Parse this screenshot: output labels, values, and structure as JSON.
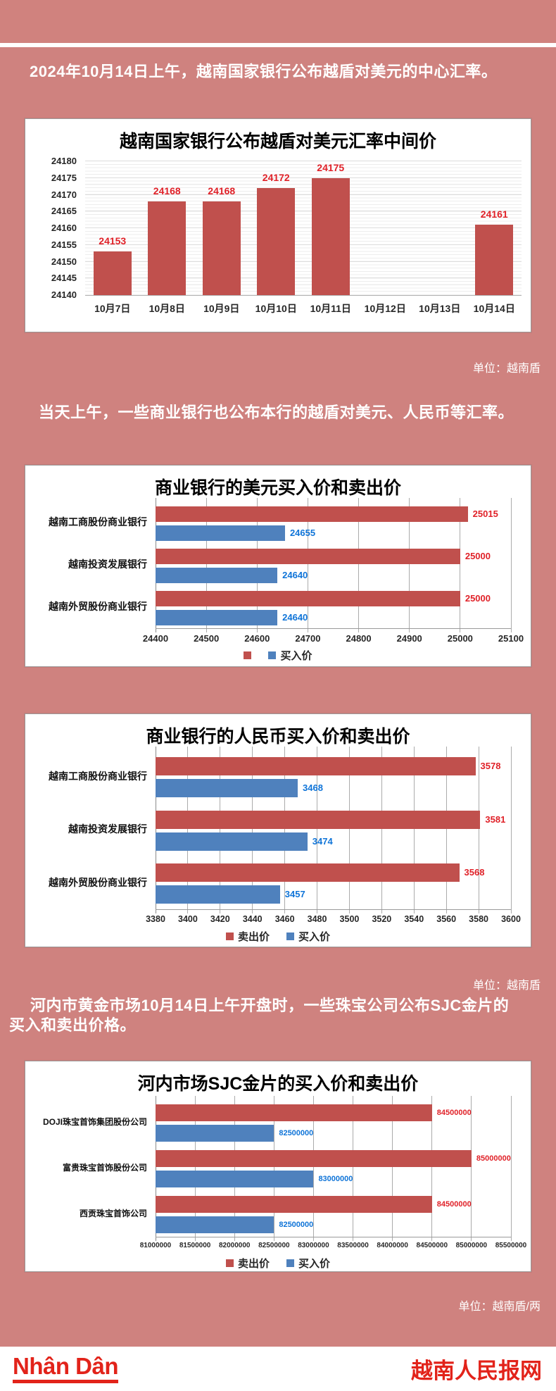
{
  "colors": {
    "bar_red": "#c0504d",
    "bar_blue": "#4f81bd",
    "label_red": "#e02128",
    "label_blue": "#0f74d8",
    "background_pink": "#cf827f",
    "brand_red": "#e2231a"
  },
  "intro1": "2024年10月14日上午，越南国家银行公布越盾对美元的中心汇率。",
  "unit1": "单位：越南盾",
  "intro2": "当天上午，一些商业银行也公布本行的越盾对美元、人民币等汇率。",
  "unit2": "单位：越南盾",
  "intro3": {
    "line1": "河内市黄金市场10月14日上午开盘时，一些珠宝公司公布SJC金片的",
    "line2": "买入和卖出价格。"
  },
  "unit3": "单位：越南盾/两",
  "footer": {
    "logo": "Nhân Dân",
    "site": "越南人民报网"
  },
  "chart_data": [
    {
      "type": "bar",
      "title": "越南国家银行公布越盾对美元汇率中间价",
      "categories": [
        "10月7日",
        "10月8日",
        "10月9日",
        "10月10日",
        "10月11日",
        "10月12日",
        "10月13日",
        "10月14日"
      ],
      "values": [
        24153,
        24168,
        24168,
        24172,
        24175,
        null,
        null,
        24161
      ],
      "ylim": [
        24140,
        24180
      ],
      "ytick_step": 5,
      "bar_color": "#c0504d",
      "label_color": "#e02128",
      "grid": "horizontal",
      "unit": "越南盾"
    },
    {
      "type": "hbar",
      "title": "商业银行的美元买入价和卖出价",
      "categories": [
        "越南工商股份商业银行",
        "越南投资发展银行",
        "越南外贸股份商业银行"
      ],
      "series": [
        {
          "name": "",
          "color": "#c0504d",
          "label_color": "#e02128",
          "values": [
            25015,
            25000,
            25000
          ]
        },
        {
          "name": "买入价",
          "color": "#4f81bd",
          "label_color": "#0f74d8",
          "values": [
            24655,
            24640,
            24640
          ]
        }
      ],
      "xlim": [
        24400,
        25100
      ],
      "xtick_step": 100,
      "legend_position": "bottom",
      "unit": "越南盾"
    },
    {
      "type": "hbar",
      "title": "商业银行的人民币买入价和卖出价",
      "categories": [
        "越南工商股份商业银行",
        "越南投资发展银行",
        "越南外贸股份商业银行"
      ],
      "series": [
        {
          "name": "卖出价",
          "color": "#c0504d",
          "label_color": "#e02128",
          "values": [
            3578,
            3581,
            3568
          ]
        },
        {
          "name": "买入价",
          "color": "#4f81bd",
          "label_color": "#0f74d8",
          "values": [
            3468,
            3474,
            3457
          ]
        }
      ],
      "xlim": [
        3380,
        3600
      ],
      "xtick_step": 20,
      "legend_position": "bottom",
      "unit": "越南盾"
    },
    {
      "type": "hbar",
      "title": "河内市场SJC金片的买入价和卖出价",
      "categories": [
        "DOJI珠宝首饰集团股份公司",
        "富贵珠宝首饰股份公司",
        "西贡珠宝首饰公司"
      ],
      "series": [
        {
          "name": "卖出价",
          "color": "#c0504d",
          "label_color": "#e02128",
          "values": [
            84500000,
            85000000,
            84500000
          ]
        },
        {
          "name": "买入价",
          "color": "#4f81bd",
          "label_color": "#0f74d8",
          "values": [
            82500000,
            83000000,
            82500000
          ]
        }
      ],
      "xlim": [
        81000000,
        85500000
      ],
      "xtick_step": 500000,
      "legend_position": "bottom",
      "unit": "越南盾/两"
    }
  ]
}
